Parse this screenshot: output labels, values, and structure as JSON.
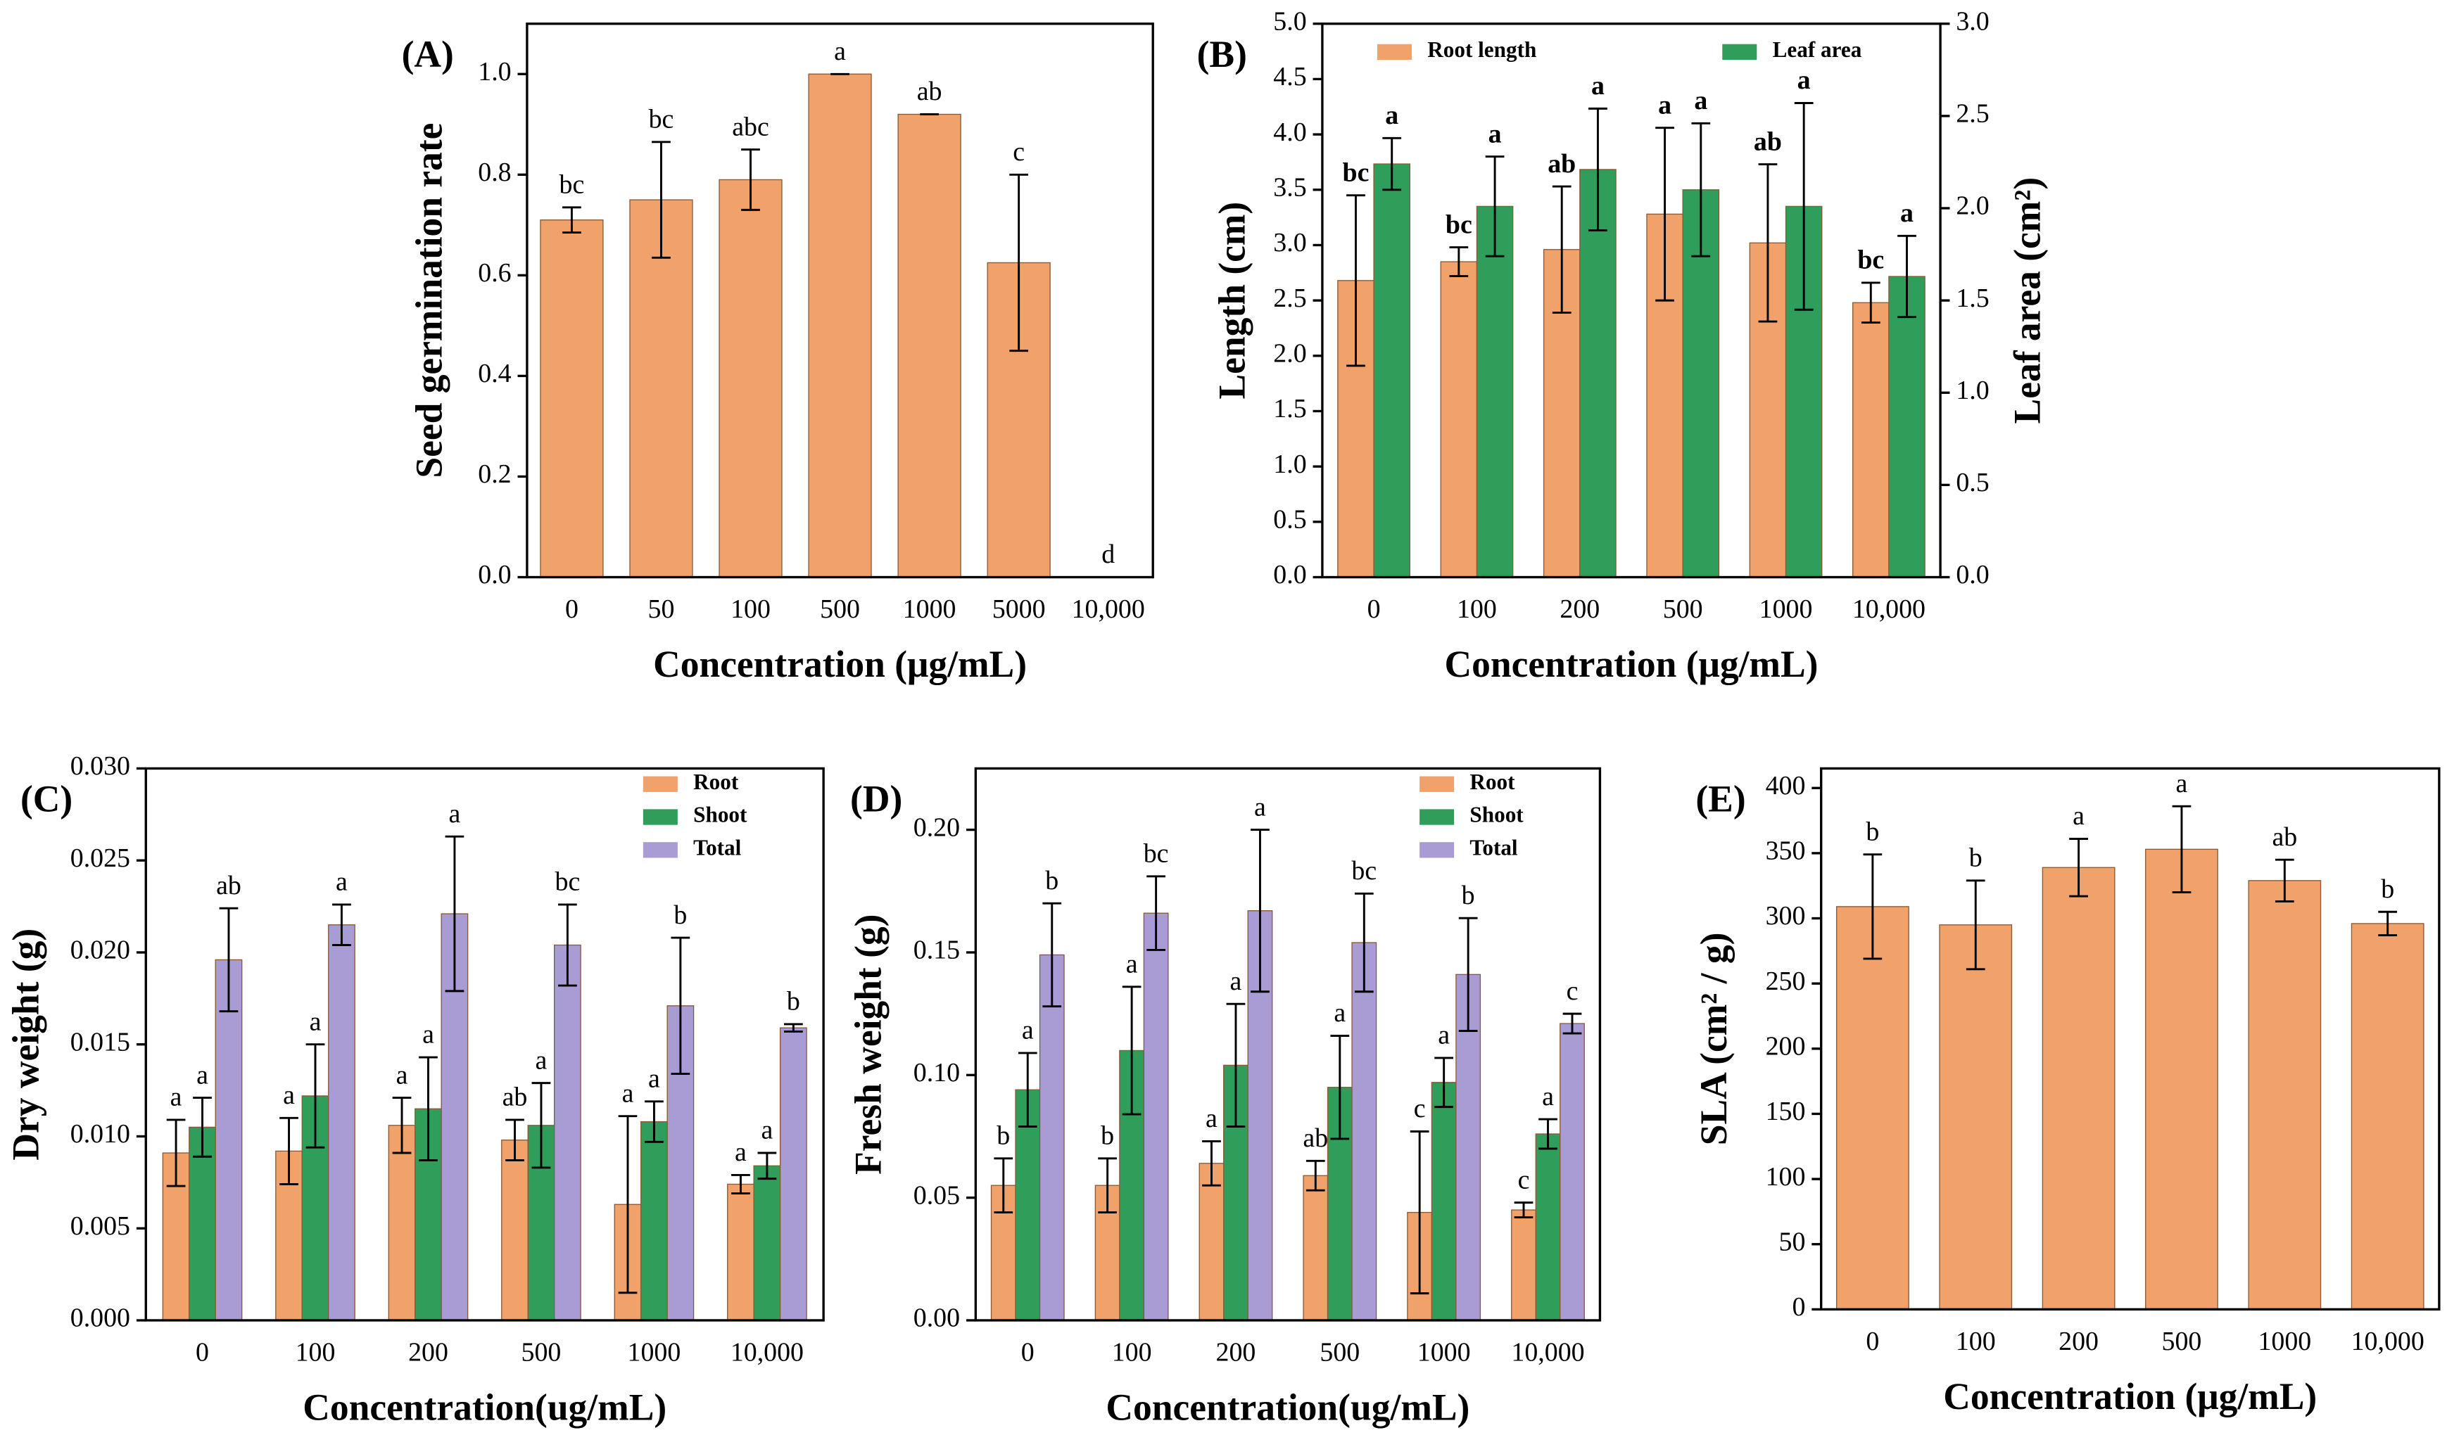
{
  "chart_data": [
    {
      "type": "bar",
      "panel_label": "(A)",
      "y_label": "Seed germination rate",
      "x_label": "Concentration (μg/mL)",
      "categories": [
        "0",
        "50",
        "100",
        "500",
        "1000",
        "5000",
        "10,000"
      ],
      "series": [
        {
          "color": "#f0a26a",
          "values": [
            0.71,
            0.75,
            0.79,
            1.0,
            0.92,
            0.625,
            0
          ],
          "errors": [
            0.025,
            0.115,
            0.06,
            0,
            0,
            0.175,
            0
          ],
          "letters": [
            "bc",
            "bc",
            "abc",
            "a",
            "ab",
            "c",
            "d"
          ]
        }
      ],
      "ylim": [
        0,
        1.1
      ],
      "yticks": [
        {
          "value": 0,
          "label": "0.0"
        },
        {
          "value": 0.2,
          "label": "0.2"
        },
        {
          "value": 0.4,
          "label": "0.4"
        },
        {
          "value": 0.6,
          "label": "0.6"
        },
        {
          "value": 0.8,
          "label": "0.8"
        },
        {
          "value": 1,
          "label": "1.0"
        }
      ]
    },
    {
      "type": "bar",
      "panel_label": "(B)",
      "y_label": "Length (cm)",
      "y2_label": "Leaf area (cm²)",
      "x_label": "Concentration (μg/mL)",
      "categories": [
        "0",
        "100",
        "200",
        "500",
        "1000",
        "10,000"
      ],
      "legend": "top",
      "series": [
        {
          "name": "Root length",
          "color": "#f0a26a",
          "values": [
            2.68,
            2.85,
            2.96,
            3.28,
            3.02,
            2.48
          ],
          "errors": [
            0.77,
            0.13,
            0.57,
            0.78,
            0.71,
            0.18
          ],
          "letters": [
            "bc",
            "bc",
            "ab",
            "a",
            "ab",
            "bc"
          ]
        },
        {
          "name": "Leaf area",
          "color": "#2e9e5a",
          "axis": "y2",
          "values": [
            2.24,
            2.01,
            2.21,
            2.1,
            2.01,
            1.63
          ],
          "errors": [
            0.14,
            0.27,
            0.33,
            0.36,
            0.56,
            0.22
          ],
          "letters": [
            "a",
            "a",
            "a",
            "a",
            "a",
            "a"
          ]
        }
      ],
      "ylim": [
        0,
        5
      ],
      "yticks": [
        {
          "value": 0,
          "label": "0.0"
        },
        {
          "value": 0.5,
          "label": "0.5"
        },
        {
          "value": 1,
          "label": "1.0"
        },
        {
          "value": 1.5,
          "label": "1.5"
        },
        {
          "value": 2,
          "label": "2.0"
        },
        {
          "value": 2.5,
          "label": "2.5"
        },
        {
          "value": 3,
          "label": "3.0"
        },
        {
          "value": 3.5,
          "label": "3.5"
        },
        {
          "value": 4,
          "label": "4.0"
        },
        {
          "value": 4.5,
          "label": "4.5"
        },
        {
          "value": 5,
          "label": "5.0"
        }
      ],
      "y2lim": [
        0,
        3
      ],
      "y2ticks": [
        {
          "value": 0,
          "label": "0.0"
        },
        {
          "value": 0.5,
          "label": "0.5"
        },
        {
          "value": 1,
          "label": "1.0"
        },
        {
          "value": 1.5,
          "label": "1.5"
        },
        {
          "value": 2,
          "label": "2.0"
        },
        {
          "value": 2.5,
          "label": "2.5"
        },
        {
          "value": 3,
          "label": "3.0"
        }
      ]
    },
    {
      "type": "bar",
      "panel_label": "(C)",
      "y_label": "Dry weight (g)",
      "x_label": "Concentration(ug/mL)",
      "categories": [
        "0",
        "100",
        "200",
        "500",
        "1000",
        "10,000"
      ],
      "legend": "upper right",
      "series": [
        {
          "name": "Root",
          "color": "#f0a26a",
          "values": [
            0.0091,
            0.0092,
            0.0106,
            0.0098,
            0.0063,
            0.0074
          ],
          "errors": [
            0.0018,
            0.0018,
            0.0015,
            0.0011,
            0.0048,
            0.0005
          ],
          "letters": [
            "a",
            "a",
            "a",
            "ab",
            "a",
            "a"
          ]
        },
        {
          "name": "Shoot",
          "color": "#2e9e5a",
          "values": [
            0.0105,
            0.0122,
            0.0115,
            0.0106,
            0.0108,
            0.0084
          ],
          "errors": [
            0.0016,
            0.0028,
            0.0028,
            0.0023,
            0.0011,
            0.0007
          ],
          "letters": [
            "a",
            "a",
            "a",
            "a",
            "a",
            "a"
          ]
        },
        {
          "name": "Total",
          "color": "#a99bd4",
          "values": [
            0.0196,
            0.0215,
            0.0221,
            0.0204,
            0.0171,
            0.0159
          ],
          "errors": [
            0.0028,
            0.0011,
            0.0042,
            0.0022,
            0.0037,
            0.0002
          ],
          "letters": [
            "ab",
            "a",
            "a",
            "bc",
            "b",
            "b"
          ]
        }
      ],
      "ylim": [
        0,
        0.03
      ],
      "yticks": [
        {
          "value": 0,
          "label": "0.000"
        },
        {
          "value": 0.005,
          "label": "0.005"
        },
        {
          "value": 0.01,
          "label": "0.010"
        },
        {
          "value": 0.015,
          "label": "0.015"
        },
        {
          "value": 0.02,
          "label": "0.020"
        },
        {
          "value": 0.025,
          "label": "0.025"
        },
        {
          "value": 0.03,
          "label": "0.030"
        }
      ]
    },
    {
      "type": "bar",
      "panel_label": "(D)",
      "y_label": "Fresh weight (g)",
      "x_label": "Concentration(ug/mL)",
      "categories": [
        "0",
        "100",
        "200",
        "500",
        "1000",
        "10,000"
      ],
      "legend": "upper right",
      "series": [
        {
          "name": "Root",
          "color": "#f0a26a",
          "values": [
            0.055,
            0.055,
            0.064,
            0.059,
            0.044,
            0.045
          ],
          "errors": [
            0.011,
            0.011,
            0.009,
            0.006,
            0.033,
            0.003
          ],
          "letters": [
            "b",
            "b",
            "a",
            "ab",
            "c",
            "c"
          ]
        },
        {
          "name": "Shoot",
          "color": "#2e9e5a",
          "values": [
            0.094,
            0.11,
            0.104,
            0.095,
            0.097,
            0.076
          ],
          "errors": [
            0.015,
            0.026,
            0.025,
            0.021,
            0.01,
            0.006
          ],
          "letters": [
            "a",
            "a",
            "a",
            "a",
            "a",
            "a"
          ]
        },
        {
          "name": "Total",
          "color": "#a99bd4",
          "values": [
            0.149,
            0.166,
            0.167,
            0.154,
            0.141,
            0.121
          ],
          "errors": [
            0.021,
            0.015,
            0.033,
            0.02,
            0.023,
            0.004
          ],
          "letters": [
            "b",
            "bc",
            "a",
            "bc",
            "b",
            "c"
          ]
        }
      ],
      "ylim": [
        0,
        0.225
      ],
      "yticks": [
        {
          "value": 0,
          "label": "0.00"
        },
        {
          "value": 0.05,
          "label": "0.05"
        },
        {
          "value": 0.1,
          "label": "0.10"
        },
        {
          "value": 0.15,
          "label": "0.15"
        },
        {
          "value": 0.2,
          "label": "0.20"
        }
      ]
    },
    {
      "type": "bar",
      "panel_label": "(E)",
      "y_label": "SLA (cm² / g)",
      "x_label": "Concentration (μg/mL)",
      "categories": [
        "0",
        "100",
        "200",
        "500",
        "1000",
        "10,000"
      ],
      "series": [
        {
          "color": "#f0a26a",
          "values": [
            309,
            295,
            339,
            353,
            329,
            296
          ],
          "errors": [
            40,
            34,
            22,
            33,
            16,
            9
          ],
          "letters": [
            "b",
            "b",
            "a",
            "a",
            "ab",
            "b"
          ]
        }
      ],
      "ylim": [
        0,
        415
      ],
      "yticks": [
        0,
        50,
        100,
        150,
        200,
        250,
        300,
        350,
        400
      ]
    }
  ]
}
